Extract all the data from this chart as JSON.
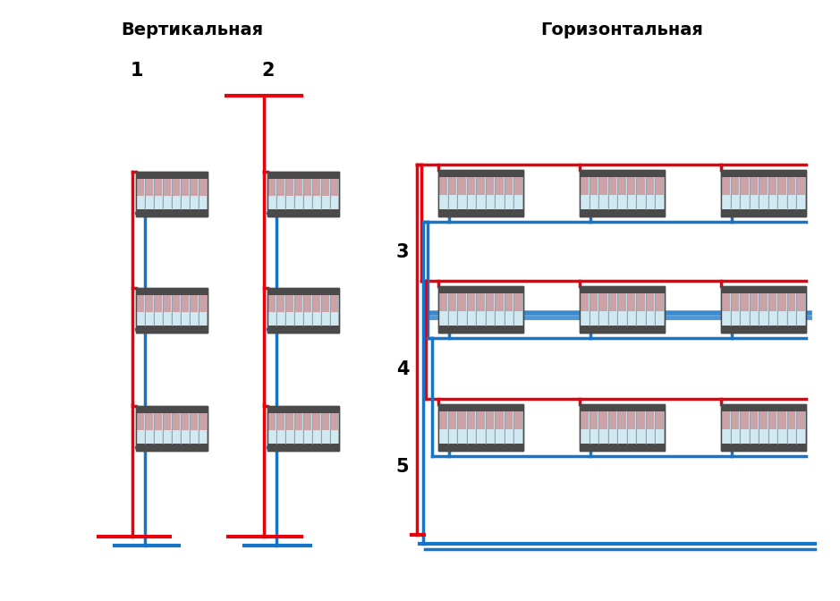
{
  "title_left": "Вертикальная",
  "title_right": "Горизонтальная",
  "red": "#e8000d",
  "blue": "#1575c8",
  "gray_dark": "#4a4a4a",
  "gray_light": "#c5dce6",
  "white": "#ffffff",
  "lw_pipe": 2.5,
  "lw_main": 3.0,
  "fig_w": 9.39,
  "fig_h": 6.72,
  "dpi": 100
}
